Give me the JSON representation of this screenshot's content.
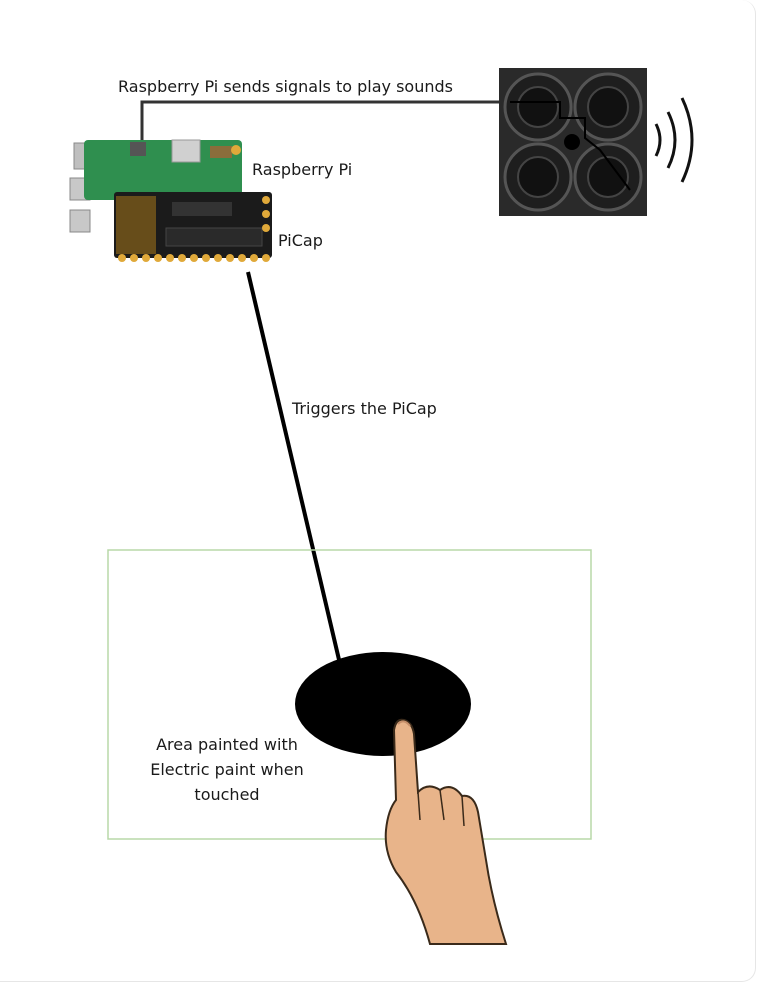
{
  "labels": {
    "signal": "Raspberry Pi sends signals to play sounds",
    "raspberry_pi": "Raspberry Pi",
    "picap": "PiCap",
    "trigger": "Triggers the PiCap",
    "area_line1": "Area painted with",
    "area_line2": "Electric paint when",
    "area_line3": "touched"
  },
  "colors": {
    "board_green": "#2f8f4f",
    "picap_black": "#1b1b1b",
    "gold_pin": "#e0a93a",
    "speaker_dark": "#2a2a2a",
    "frame_green": "#b8d8a8",
    "skin": "#e8b48a"
  }
}
